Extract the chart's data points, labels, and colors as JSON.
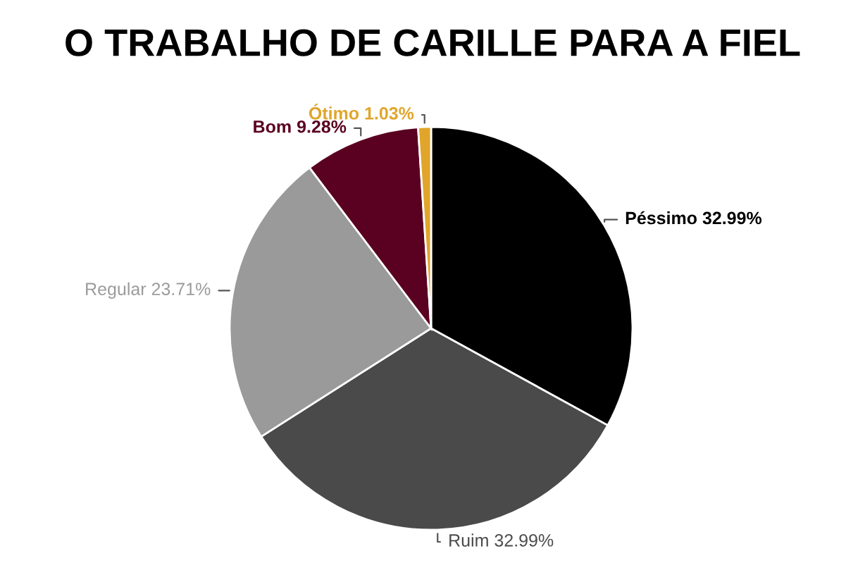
{
  "chart_data": {
    "type": "pie",
    "title": "O TRABALHO DE CARILLE PARA A FIEL",
    "categories": [
      "Péssimo",
      "Ruim",
      "Regular",
      "Bom",
      "Ótimo"
    ],
    "values": [
      32.99,
      32.99,
      23.71,
      9.28,
      1.03
    ],
    "value_labels": [
      "32.99%",
      "32.99%",
      "23.71%",
      "9.28%",
      "1.03%"
    ],
    "colors": [
      "#000000",
      "#4a4a4a",
      "#9a9a9a",
      "#5a0020",
      "#e0a52a"
    ],
    "legend": false
  }
}
